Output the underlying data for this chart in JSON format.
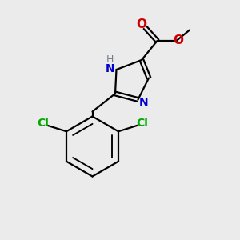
{
  "bg_color": "#ebebeb",
  "bond_color": "#000000",
  "N_color": "#0000cc",
  "O_color": "#cc0000",
  "Cl_color": "#00aa00",
  "H_color": "#708090",
  "line_width": 1.6,
  "figsize": [
    3.0,
    3.0
  ],
  "dpi": 100,
  "xlim": [
    0,
    10
  ],
  "ylim": [
    0,
    10
  ]
}
